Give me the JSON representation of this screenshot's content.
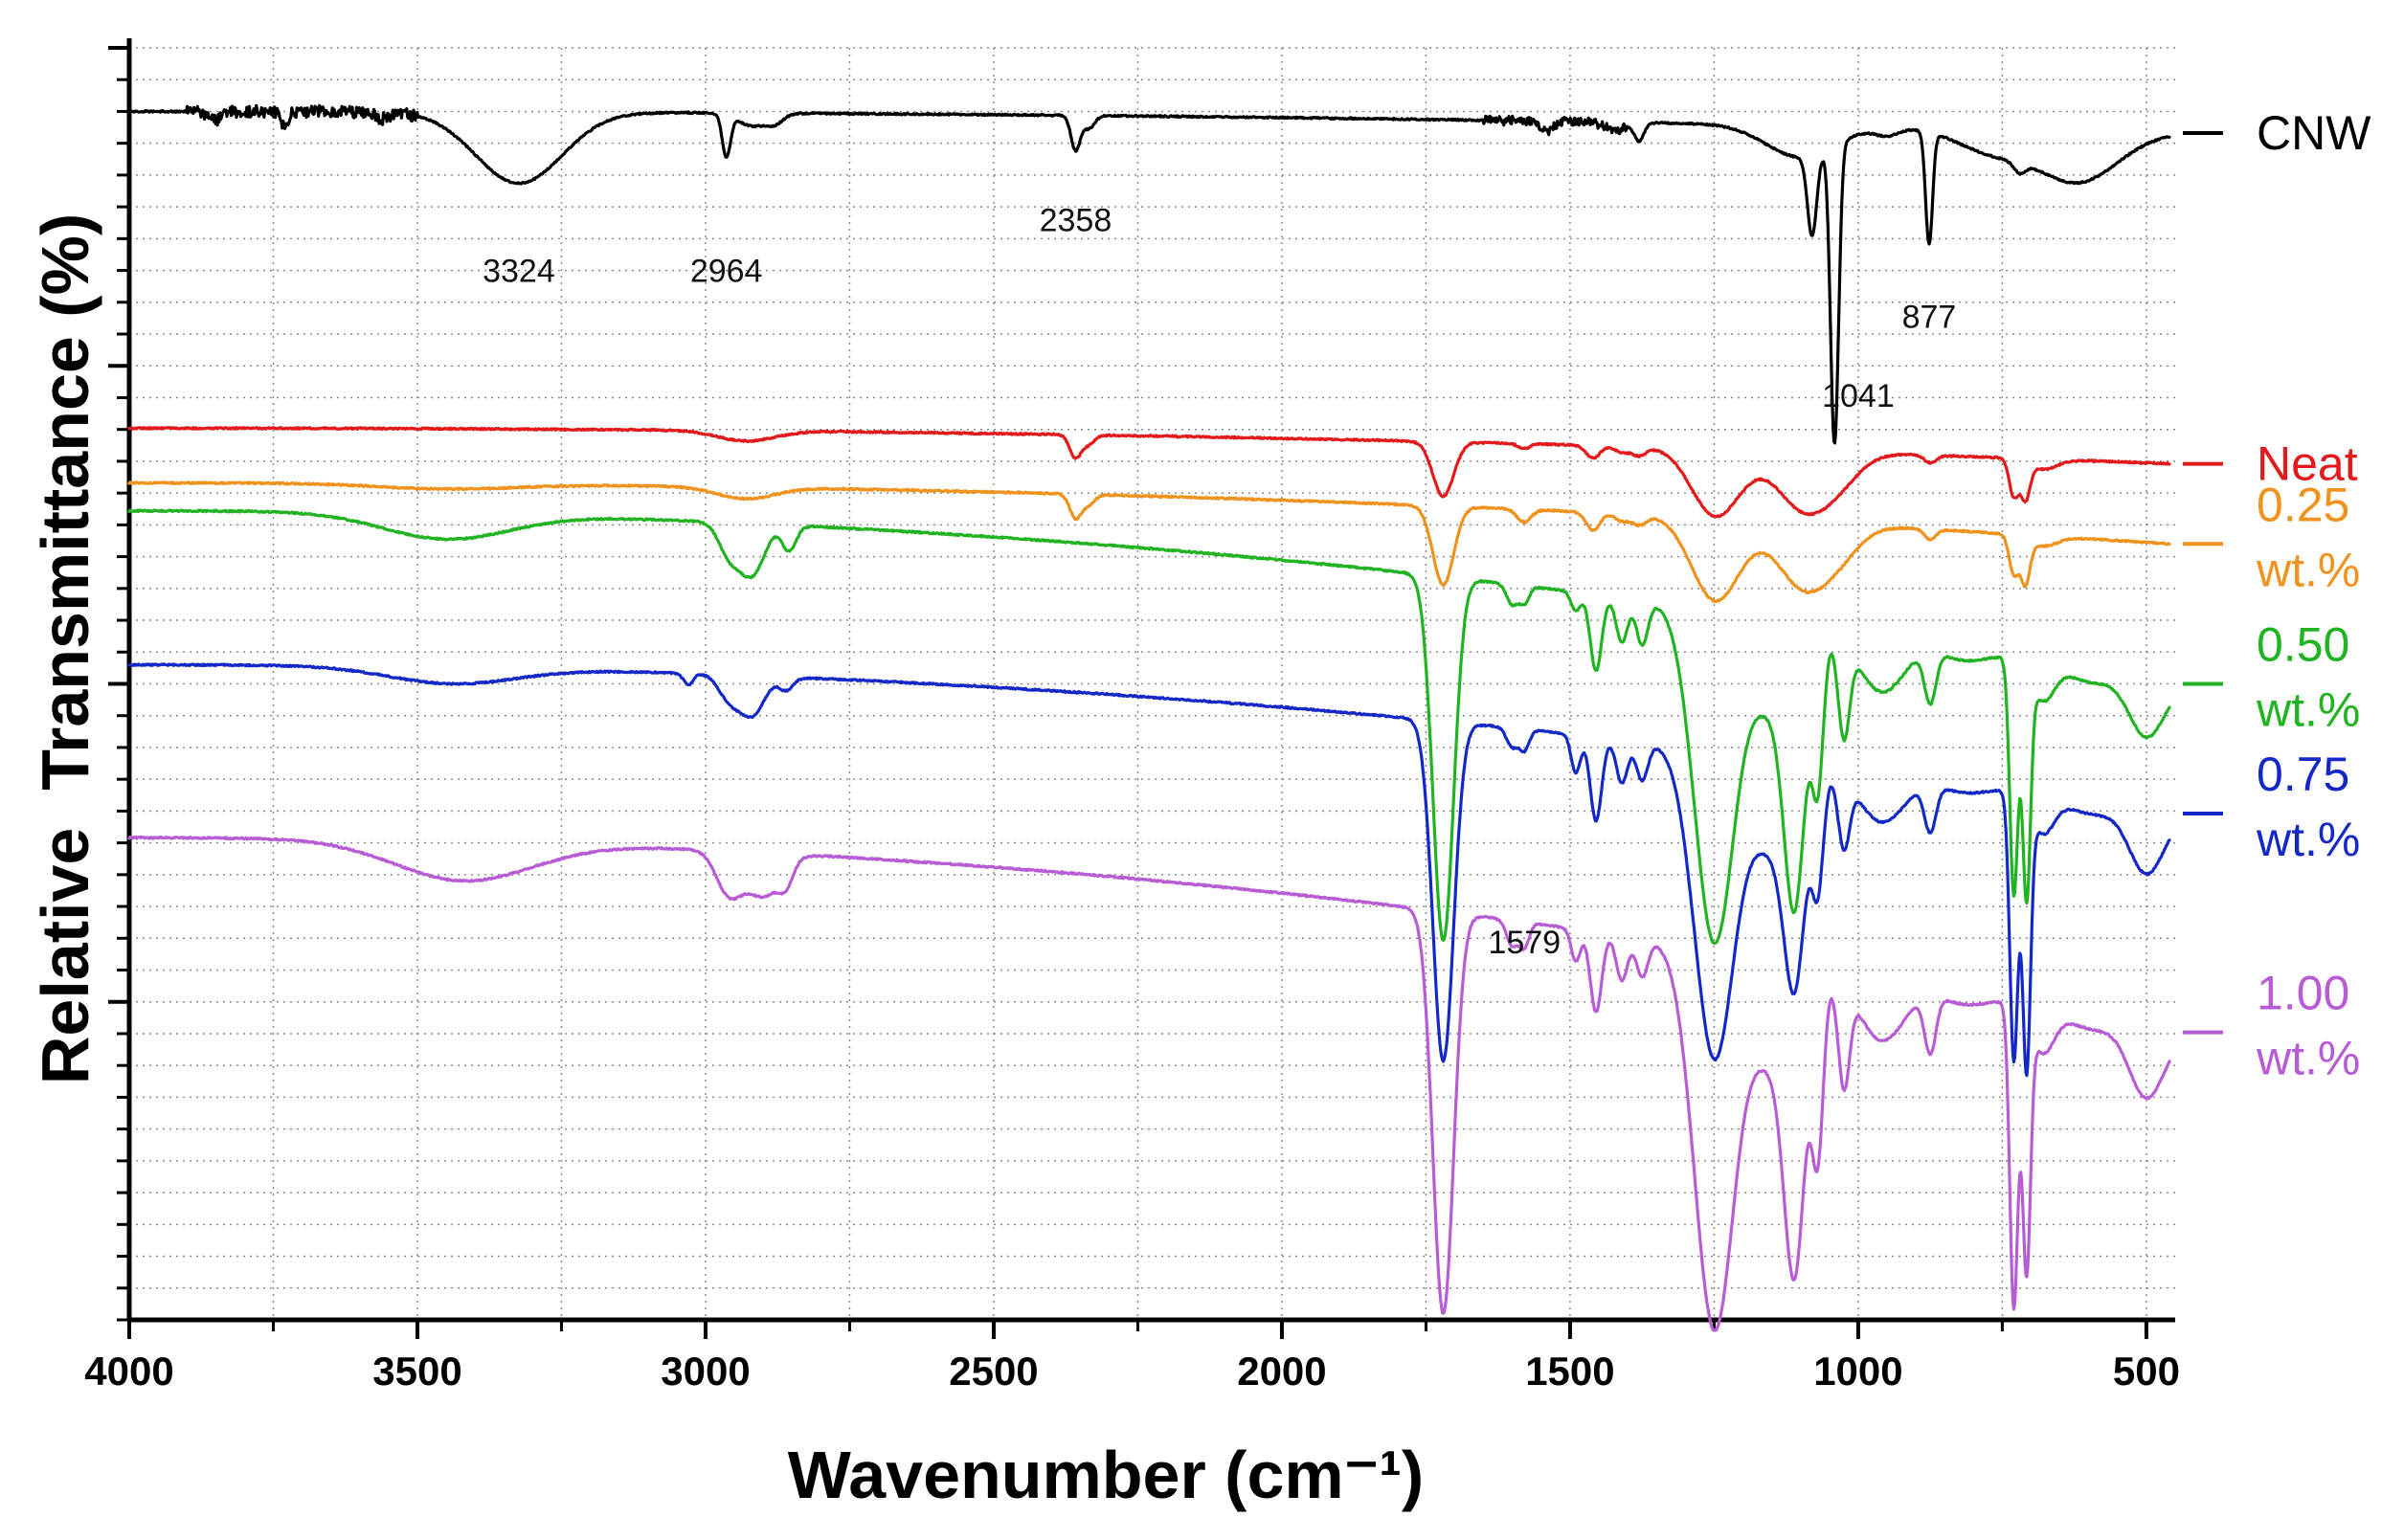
{
  "chart_data": {
    "type": "line",
    "title": "",
    "xlabel": "Wavenumber (cm⁻¹)",
    "ylabel": "Relative  Transmittance (%)",
    "xlim": [
      4000,
      450
    ],
    "x_reversed": true,
    "ylim": [
      0,
      100
    ],
    "grid": true,
    "x_ticks": [
      4000,
      3500,
      3000,
      2500,
      2000,
      1500,
      1000,
      500
    ],
    "x_tick_labels": [
      "4000",
      "3500",
      "3000",
      "2500",
      "2000",
      "1500",
      "1000",
      "500"
    ],
    "legend_placement": "right",
    "series": [
      {
        "name": "CNW",
        "label_lines": [
          "CNW"
        ],
        "color": "#000000",
        "baseline": 95,
        "end": 93.3,
        "ripple": [
          [
            3900,
            3500,
            0.9
          ],
          [
            1650,
            1400,
            0.7
          ]
        ],
        "features": [
          [
            3850,
            0.6,
            12
          ],
          [
            3730,
            1.3,
            6
          ],
          [
            3560,
            0.5,
            12
          ],
          [
            3324,
            5.6,
            75
          ],
          [
            2964,
            3.3,
            7
          ],
          [
            2920,
            1.0,
            25
          ],
          [
            2880,
            0.7,
            15
          ],
          [
            2358,
            2.7,
            8
          ],
          [
            2335,
            1.0,
            10
          ],
          [
            1540,
            0.8,
            10
          ],
          [
            1380,
            1.4,
            8
          ],
          [
            1420,
            0.6,
            20
          ],
          [
            1100,
            2.5,
            60
          ],
          [
            1080,
            6.3,
            8
          ],
          [
            1041,
            23.5,
            7
          ],
          [
            950,
            0.6,
            20
          ],
          [
            877,
            8.8,
            6
          ],
          [
            770,
            1.7,
            60
          ],
          [
            720,
            0.8,
            10
          ],
          [
            620,
            4.0,
            70
          ]
        ]
      },
      {
        "name": "Neat",
        "label_lines": [
          "Neat"
        ],
        "color": "#e31a1c",
        "baseline": 70.1,
        "end": 67.3,
        "ripple": [],
        "features": [
          [
            2930,
            0.8,
            50
          ],
          [
            2358,
            1.8,
            10
          ],
          [
            2335,
            0.7,
            10
          ],
          [
            1720,
            4.3,
            18
          ],
          [
            1580,
            0.4,
            10
          ],
          [
            1460,
            1.0,
            12
          ],
          [
            1410,
            0.5,
            12
          ],
          [
            1380,
            0.7,
            12
          ],
          [
            1250,
            4.6,
            40
          ],
          [
            1200,
            1.0,
            60
          ],
          [
            1100,
            3.7,
            40
          ],
          [
            1040,
            2.5,
            40
          ],
          [
            875,
            0.6,
            10
          ],
          [
            730,
            2.9,
            8
          ],
          [
            710,
            2.9,
            8
          ],
          [
            680,
            0.8,
            25
          ]
        ]
      },
      {
        "name": "0.25 wt.%",
        "label_lines": [
          "0.25",
          "wt.%"
        ],
        "color": "#f0921e",
        "baseline": 65.8,
        "end": 61.0,
        "ripple": [],
        "features": [
          [
            3450,
            0.4,
            120
          ],
          [
            2930,
            0.9,
            50
          ],
          [
            2358,
            1.9,
            10
          ],
          [
            2335,
            0.8,
            10
          ],
          [
            1720,
            6.2,
            18
          ],
          [
            1580,
            1.0,
            12
          ],
          [
            1460,
            1.4,
            12
          ],
          [
            1410,
            0.6,
            12
          ],
          [
            1380,
            0.8,
            12
          ],
          [
            1250,
            5.8,
            40
          ],
          [
            1200,
            1.0,
            60
          ],
          [
            1100,
            4.2,
            40
          ],
          [
            1040,
            2.6,
            40
          ],
          [
            875,
            0.8,
            10
          ],
          [
            730,
            3.0,
            8
          ],
          [
            710,
            3.5,
            8
          ],
          [
            680,
            0.8,
            25
          ]
        ]
      },
      {
        "name": "0.50 wt.%",
        "label_lines": [
          "0.50",
          "wt.%"
        ],
        "color": "#21b321",
        "baseline": 63.6,
        "end": 50.0,
        "ripple": [],
        "features": [
          [
            3450,
            2.0,
            110
          ],
          [
            2960,
            2.3,
            18
          ],
          [
            2920,
            4.0,
            22
          ],
          [
            2855,
            2.0,
            12
          ],
          [
            1720,
            28.6,
            18
          ],
          [
            1600,
            1.6,
            10
          ],
          [
            1579,
            1.3,
            8
          ],
          [
            1490,
            1.5,
            8
          ],
          [
            1455,
            6.0,
            10
          ],
          [
            1410,
            3.5,
            10
          ],
          [
            1375,
            3.5,
            10
          ],
          [
            1250,
            25.9,
            34
          ],
          [
            1150,
            7.0,
            40
          ],
          [
            1110,
            18.5,
            18
          ],
          [
            1070,
            11.0,
            10
          ],
          [
            1025,
            7.5,
            10
          ],
          [
            960,
            4.5,
            40
          ],
          [
            875,
            4.0,
            10
          ],
          [
            820,
            1.0,
            40
          ],
          [
            730,
            18.5,
            7
          ],
          [
            708,
            18.0,
            7
          ],
          [
            680,
            3.0,
            20
          ],
          [
            600,
            1.0,
            40
          ],
          [
            500,
            4.5,
            30
          ]
        ]
      },
      {
        "name": "0.75 wt.%",
        "label_lines": [
          "0.75",
          "wt.%"
        ],
        "color": "#1428c8",
        "baseline": 51.5,
        "end": 39.8,
        "ripple": [],
        "features": [
          [
            3440,
            1.3,
            110
          ],
          [
            3030,
            0.9,
            8
          ],
          [
            2960,
            1.7,
            18
          ],
          [
            2920,
            3.1,
            22
          ],
          [
            2860,
            1.0,
            12
          ],
          [
            1720,
            26.7,
            18
          ],
          [
            1600,
            1.5,
            10
          ],
          [
            1579,
            1.6,
            8
          ],
          [
            1490,
            3.0,
            8
          ],
          [
            1455,
            6.6,
            10
          ],
          [
            1410,
            3.4,
            10
          ],
          [
            1375,
            3.0,
            10
          ],
          [
            1250,
            24.0,
            34
          ],
          [
            1150,
            7.0,
            40
          ],
          [
            1110,
            14.0,
            18
          ],
          [
            1070,
            8.5,
            10
          ],
          [
            1025,
            5.5,
            10
          ],
          [
            960,
            4.0,
            40
          ],
          [
            875,
            3.6,
            10
          ],
          [
            820,
            0.8,
            40
          ],
          [
            730,
            21.0,
            7
          ],
          [
            708,
            21.0,
            7
          ],
          [
            680,
            3.0,
            20
          ],
          [
            600,
            1.0,
            40
          ],
          [
            500,
            5.0,
            30
          ]
        ]
      },
      {
        "name": "1.00 wt.%",
        "label_lines": [
          "1.00",
          "wt.%"
        ],
        "color": "#b85cd6",
        "baseline": 37.9,
        "end": 22.6,
        "ripple": [],
        "features": [
          [
            3420,
            3.1,
            120
          ],
          [
            2960,
            3.2,
            22
          ],
          [
            2900,
            3.4,
            30
          ],
          [
            2860,
            1.5,
            12
          ],
          [
            1720,
            31.6,
            18
          ],
          [
            1600,
            2.0,
            10
          ],
          [
            1579,
            1.9,
            8
          ],
          [
            1490,
            2.5,
            8
          ],
          [
            1455,
            6.3,
            10
          ],
          [
            1410,
            3.5,
            10
          ],
          [
            1375,
            3.0,
            10
          ],
          [
            1250,
            29.6,
            34
          ],
          [
            1150,
            8.0,
            40
          ],
          [
            1110,
            20.0,
            18
          ],
          [
            1070,
            13.0,
            10
          ],
          [
            1025,
            8.0,
            10
          ],
          [
            960,
            5.0,
            40
          ],
          [
            875,
            4.5,
            10
          ],
          [
            820,
            1.0,
            40
          ],
          [
            730,
            23.8,
            7
          ],
          [
            708,
            20.0,
            7
          ],
          [
            680,
            3.5,
            20
          ],
          [
            600,
            1.0,
            40
          ],
          [
            500,
            5.5,
            30
          ]
        ]
      }
    ],
    "annotations": [
      {
        "text": "3324",
        "x": 3324,
        "y": 81.6,
        "color": "#000000"
      },
      {
        "text": "2964",
        "x": 2964,
        "y": 81.6,
        "color": "#000000"
      },
      {
        "text": "2358",
        "x": 2358,
        "y": 85.6,
        "color": "#000000"
      },
      {
        "text": "877",
        "x": 877,
        "y": 78.0,
        "color": "#000000"
      },
      {
        "text": "1041",
        "x": 1000,
        "y": 71.8,
        "color": "#000000"
      },
      {
        "text": "1579",
        "x": 1579,
        "y": 28.8,
        "color": "#000000"
      }
    ]
  }
}
